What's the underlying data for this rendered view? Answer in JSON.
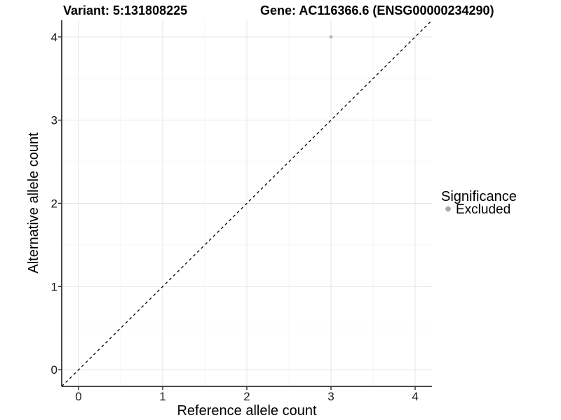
{
  "chart_data": {
    "type": "scatter",
    "title_left": "Variant: 5:131808225",
    "title_right": "Gene: AC116366.6 (ENSG00000234290)",
    "xlabel": "Reference allele count",
    "ylabel": "Alternative allele count",
    "xlim": [
      -0.2,
      4.2
    ],
    "ylim": [
      -0.2,
      4.2
    ],
    "xticks": [
      0,
      1,
      2,
      3,
      4
    ],
    "yticks": [
      0,
      1,
      2,
      3,
      4
    ],
    "grid": "major+minor",
    "minor_grid_step": 0.5,
    "series": [
      {
        "name": "Excluded",
        "color": "#bdbdbd",
        "points": [
          {
            "x": 3,
            "y": 4
          }
        ]
      }
    ],
    "reference_line": {
      "slope": 1,
      "intercept": 0,
      "linestyle": "dashed",
      "color": "#000000"
    },
    "legend": {
      "title": "Significance",
      "position": "right",
      "items": [
        {
          "label": "Excluded",
          "color": "#a6a6a6"
        }
      ]
    },
    "colors": {
      "background": "#ffffff",
      "grid_major": "#e7e7e7",
      "grid_minor": "#f2f2f2",
      "axis_line": "#333333",
      "tick_mark": "#333333"
    }
  }
}
